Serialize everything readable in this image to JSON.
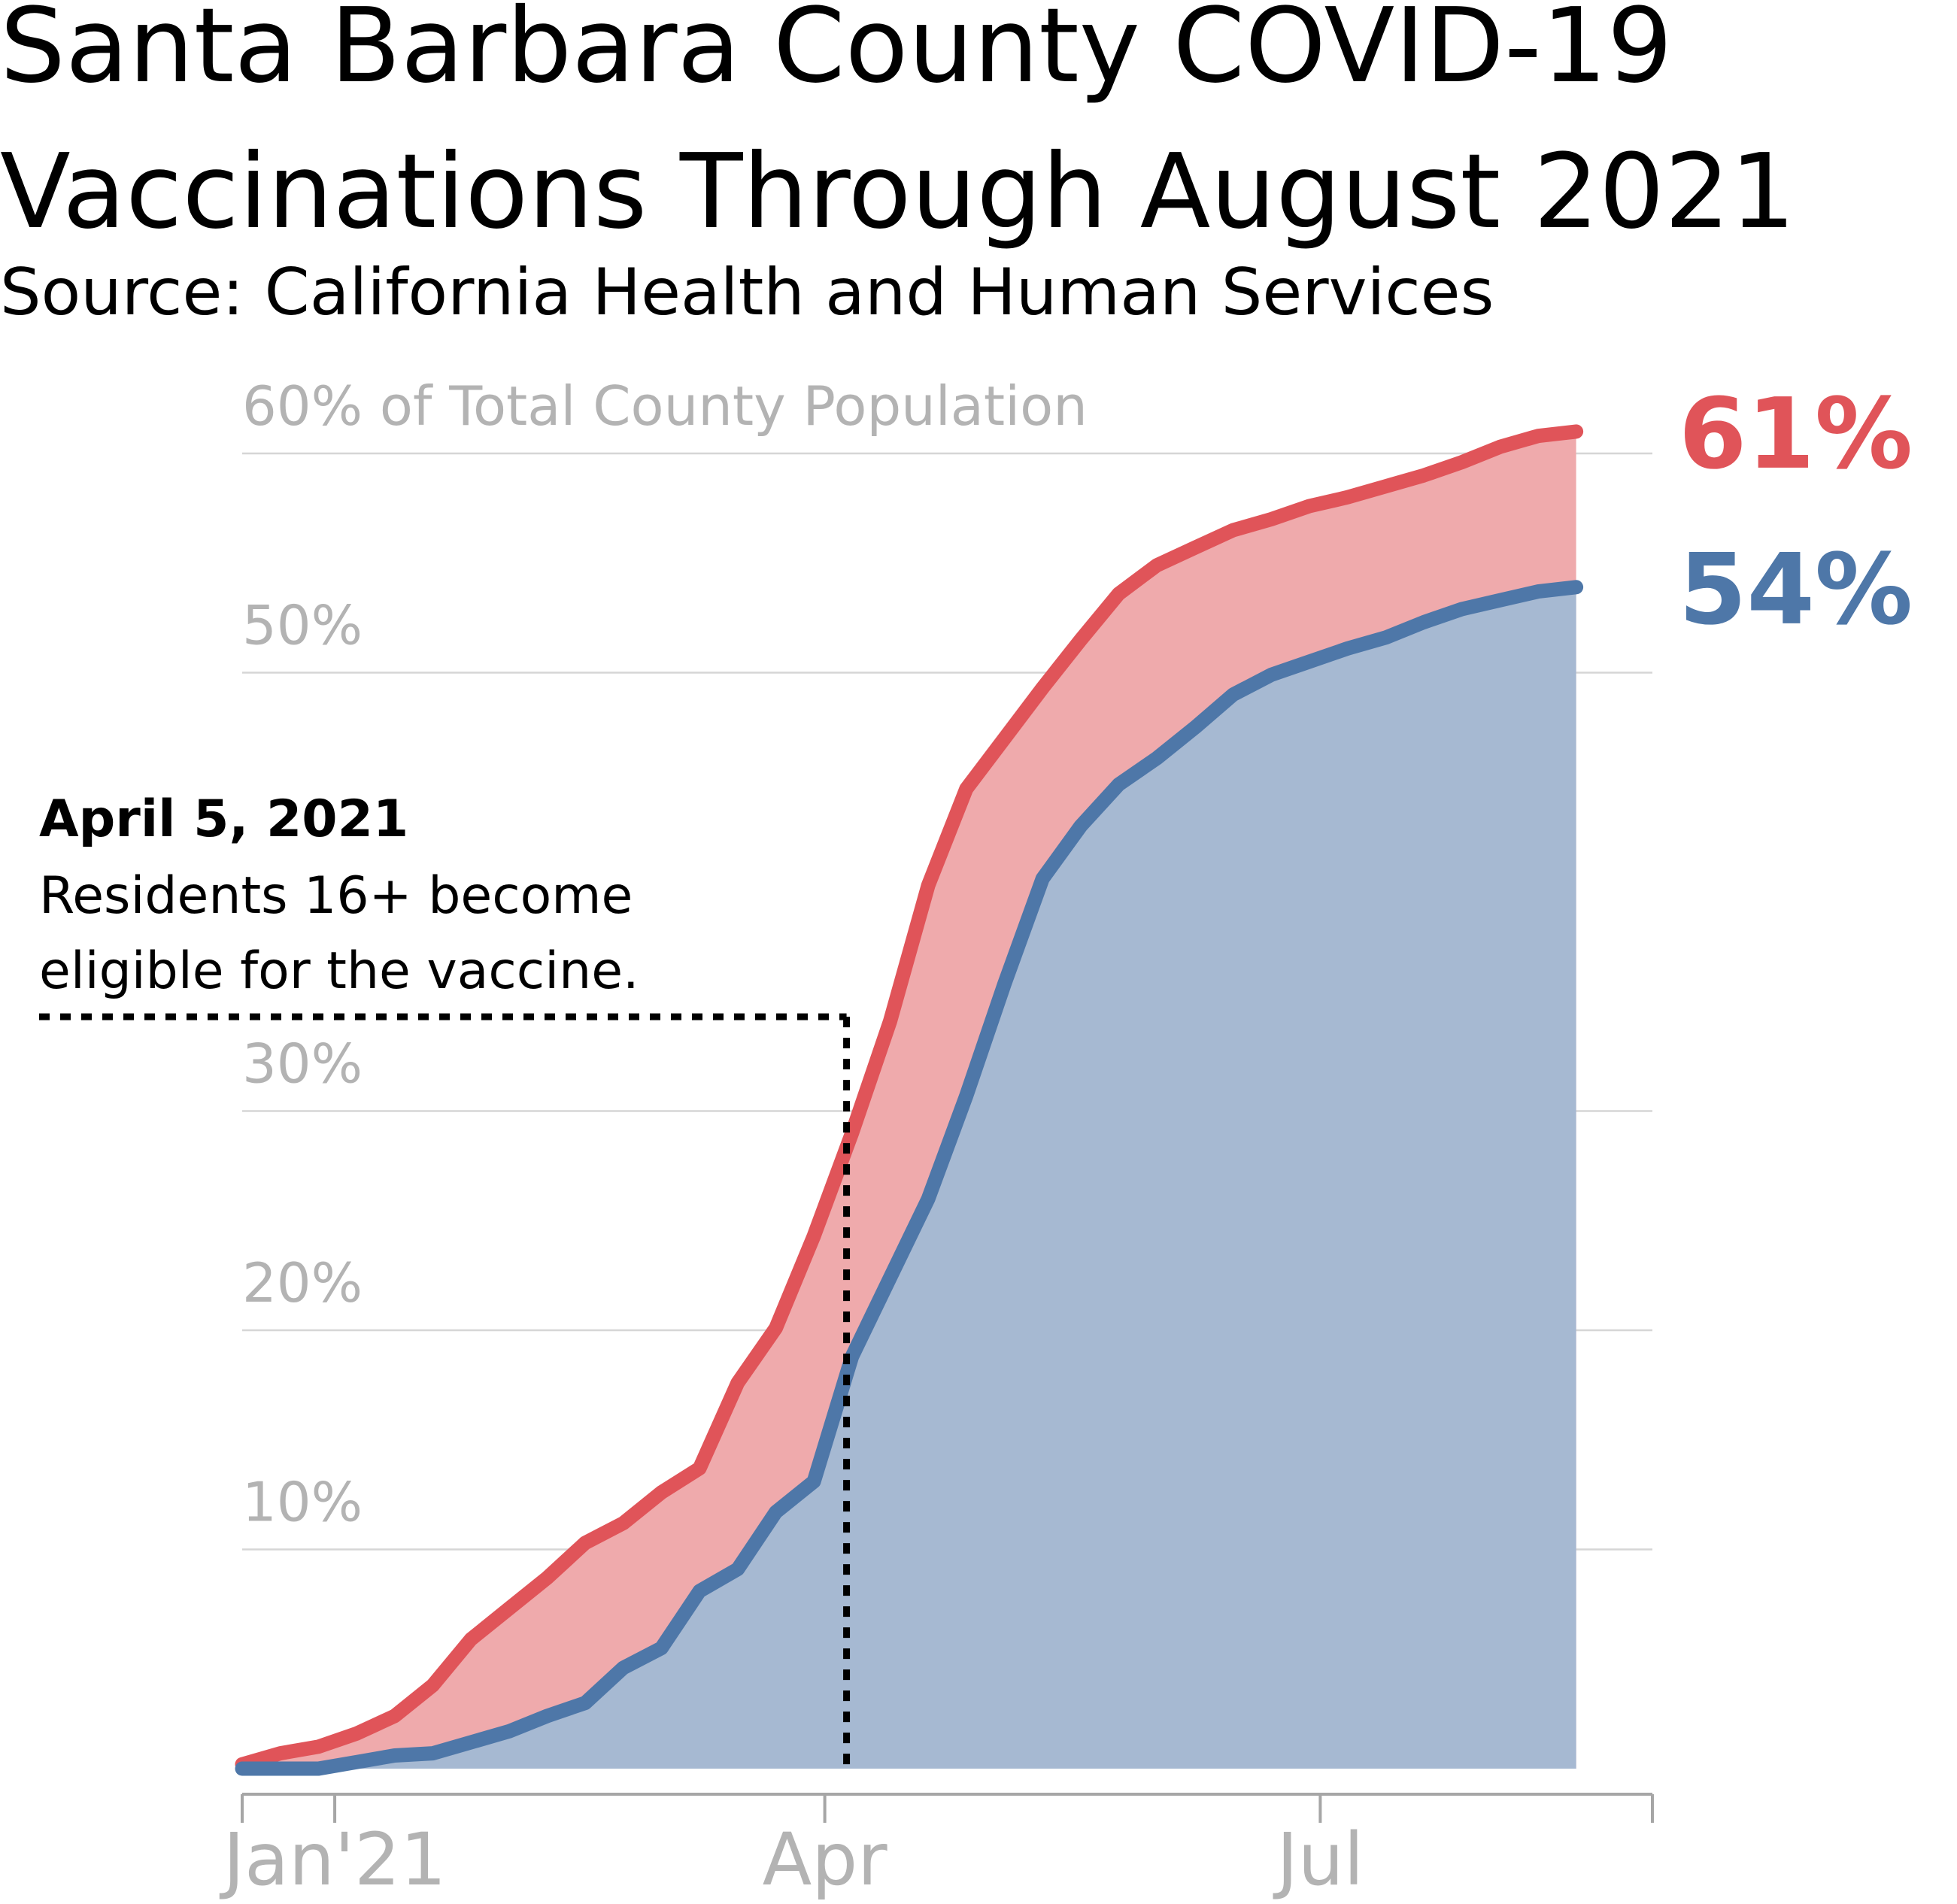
{
  "chart_data": {
    "type": "area",
    "title": "Santa Barbara County COVID-19 Vaccinations Through August 2021",
    "title_lines": [
      "Santa Barbara County COVID-19",
      "Vaccinations Through August 2021"
    ],
    "subtitle": "Source: California Health and Human Services",
    "y_unit": "% of total county population",
    "ylim": [
      0,
      60
    ],
    "yticks": [
      10,
      20,
      30,
      50,
      60
    ],
    "ytick_labels": [
      "10%",
      "20%",
      "30%",
      "50%",
      "60% of Total County Population"
    ],
    "xlim": [
      "2020-12-15",
      "2021-08-31"
    ],
    "xticks": [
      "2021-01-01",
      "2021-04-01",
      "2021-07-01"
    ],
    "xtick_labels": [
      "Jan'21",
      "Apr",
      "Jul"
    ],
    "grid": true,
    "series": [
      {
        "color": "#e05459",
        "fill_color": "#efaaac",
        "end_label": "61%",
        "points": [
          [
            "2020-12-15",
            0.2
          ],
          [
            "2020-12-22",
            0.7
          ],
          [
            "2020-12-29",
            1.0
          ],
          [
            "2021-01-05",
            1.6
          ],
          [
            "2021-01-12",
            2.4
          ],
          [
            "2021-01-19",
            3.8
          ],
          [
            "2021-01-26",
            5.9
          ],
          [
            "2021-02-02",
            7.3
          ],
          [
            "2021-02-09",
            8.7
          ],
          [
            "2021-02-16",
            10.3
          ],
          [
            "2021-02-23",
            11.2
          ],
          [
            "2021-03-02",
            12.6
          ],
          [
            "2021-03-09",
            13.7
          ],
          [
            "2021-03-16",
            17.6
          ],
          [
            "2021-03-23",
            20.1
          ],
          [
            "2021-03-30",
            24.3
          ],
          [
            "2021-04-06",
            29.0
          ],
          [
            "2021-04-13",
            34.1
          ],
          [
            "2021-04-20",
            40.3
          ],
          [
            "2021-04-27",
            44.7
          ],
          [
            "2021-05-04",
            47.0
          ],
          [
            "2021-05-11",
            49.3
          ],
          [
            "2021-05-18",
            51.5
          ],
          [
            "2021-05-25",
            53.6
          ],
          [
            "2021-06-01",
            54.9
          ],
          [
            "2021-06-08",
            55.7
          ],
          [
            "2021-06-15",
            56.5
          ],
          [
            "2021-06-22",
            57.0
          ],
          [
            "2021-06-29",
            57.6
          ],
          [
            "2021-07-06",
            58.0
          ],
          [
            "2021-07-13",
            58.5
          ],
          [
            "2021-07-20",
            59.0
          ],
          [
            "2021-07-27",
            59.6
          ],
          [
            "2021-08-03",
            60.3
          ],
          [
            "2021-08-10",
            60.8
          ],
          [
            "2021-08-17",
            61.0
          ]
        ]
      },
      {
        "color": "#4e77a8",
        "fill_color": "#a6b9d2",
        "end_label": "54%",
        "points": [
          [
            "2020-12-15",
            0.0
          ],
          [
            "2020-12-22",
            0.0
          ],
          [
            "2020-12-29",
            0.0
          ],
          [
            "2021-01-05",
            0.3
          ],
          [
            "2021-01-12",
            0.6
          ],
          [
            "2021-01-19",
            0.7
          ],
          [
            "2021-01-26",
            1.2
          ],
          [
            "2021-02-02",
            1.7
          ],
          [
            "2021-02-09",
            2.4
          ],
          [
            "2021-02-16",
            3.0
          ],
          [
            "2021-02-23",
            4.6
          ],
          [
            "2021-03-02",
            5.5
          ],
          [
            "2021-03-09",
            8.1
          ],
          [
            "2021-03-16",
            9.1
          ],
          [
            "2021-03-23",
            11.7
          ],
          [
            "2021-03-30",
            13.1
          ],
          [
            "2021-04-06",
            18.8
          ],
          [
            "2021-04-13",
            22.4
          ],
          [
            "2021-04-20",
            26.0
          ],
          [
            "2021-04-27",
            30.7
          ],
          [
            "2021-05-04",
            35.8
          ],
          [
            "2021-05-11",
            40.6
          ],
          [
            "2021-05-18",
            43.0
          ],
          [
            "2021-05-25",
            44.9
          ],
          [
            "2021-06-01",
            46.1
          ],
          [
            "2021-06-08",
            47.5
          ],
          [
            "2021-06-15",
            49.0
          ],
          [
            "2021-06-22",
            49.9
          ],
          [
            "2021-06-29",
            50.5
          ],
          [
            "2021-07-06",
            51.1
          ],
          [
            "2021-07-13",
            51.6
          ],
          [
            "2021-07-20",
            52.3
          ],
          [
            "2021-07-27",
            52.9
          ],
          [
            "2021-08-03",
            53.3
          ],
          [
            "2021-08-10",
            53.7
          ],
          [
            "2021-08-17",
            53.9
          ]
        ]
      }
    ],
    "annotation": {
      "date": "2021-04-05",
      "y": 34.3,
      "heading": "April 5, 2021",
      "lines": [
        "Residents 16+ become",
        "eligible for the vaccine."
      ]
    }
  }
}
